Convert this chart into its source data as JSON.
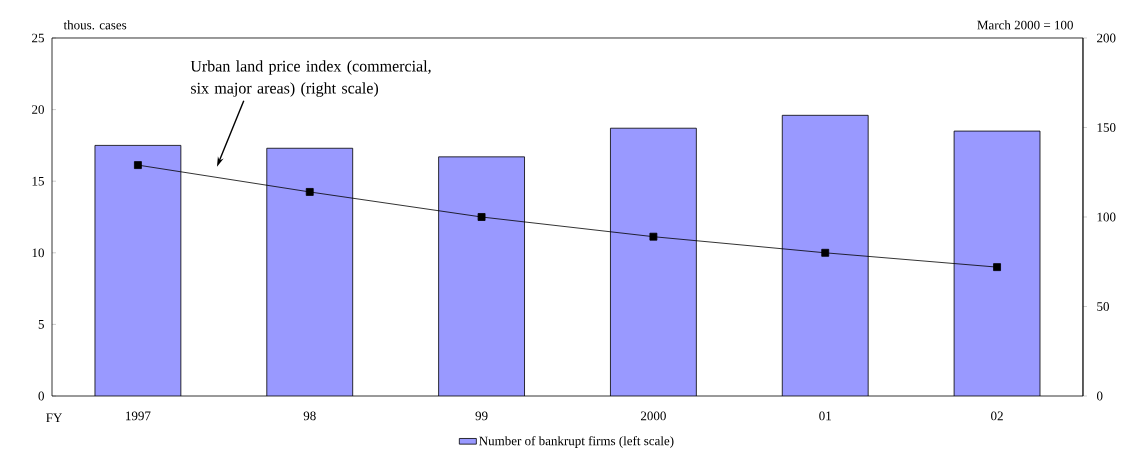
{
  "chart_data": {
    "type": "bar",
    "xlabel": "FY",
    "ylabel": "thous. cases",
    "y2label": "March 2000 = 100",
    "categories": [
      "1997",
      "98",
      "99",
      "2000",
      "01",
      "02"
    ],
    "series": [
      {
        "name": "Number of bankrupt firms (left scale)",
        "color": "#9999ff",
        "values": [
          17.5,
          17.3,
          16.7,
          18.7,
          19.6,
          18.5
        ]
      },
      {
        "name": "Urban land price index (commercial, six major areas) (right scale)",
        "type": "line",
        "axis": "y2",
        "color": "#000000",
        "marker": "square",
        "values": [
          129,
          114,
          100,
          89,
          80,
          72
        ]
      }
    ],
    "ylim": [
      0,
      25
    ],
    "yticks": [
      0,
      5,
      10,
      15,
      20,
      25
    ],
    "y2lim": [
      0,
      200
    ],
    "y2ticks": [
      0,
      50,
      100,
      150,
      200
    ],
    "legend": "bottom"
  }
}
